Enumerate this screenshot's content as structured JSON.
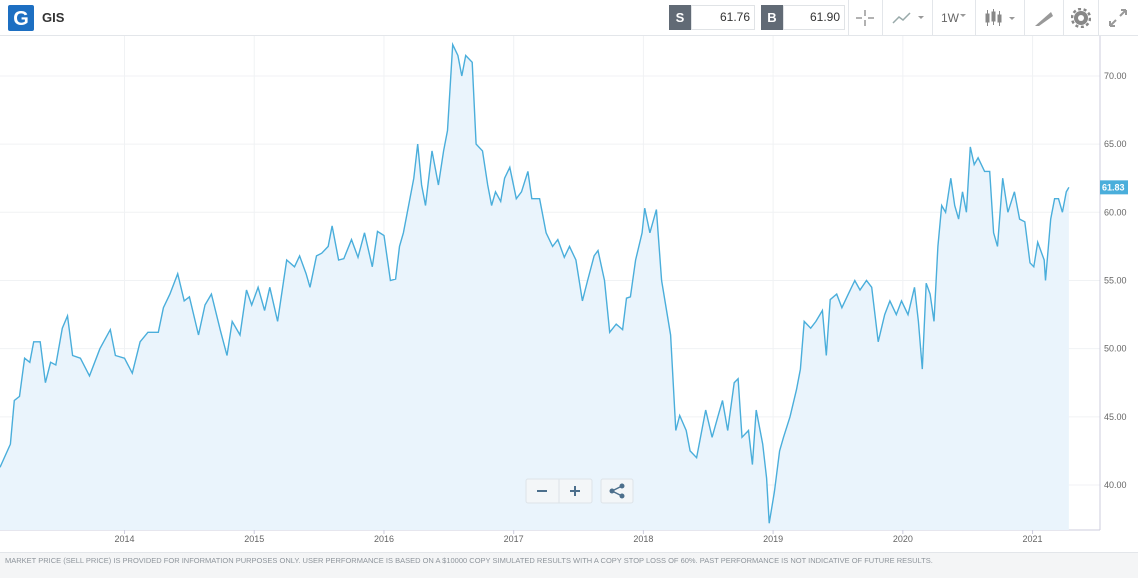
{
  "header": {
    "symbol": "GIS",
    "sell_label": "S",
    "sell_price": "61.76",
    "buy_label": "B",
    "buy_price": "61.90",
    "interval": "1W"
  },
  "chart_data": {
    "type": "line",
    "area": true,
    "area_color": "#eaf4fc",
    "grid": true,
    "axis_side": "right",
    "xlim": [
      2013.04,
      2021.52
    ],
    "xticks": [
      2014,
      2015,
      2016,
      2017,
      2018,
      2019,
      2020,
      2021
    ],
    "ylim": [
      36.7,
      72.93
    ],
    "yticks": [
      {
        "value": 40,
        "label": "40.00"
      },
      {
        "value": 45,
        "label": "45.00"
      },
      {
        "value": 50,
        "label": "50.00"
      },
      {
        "value": 55,
        "label": "55.00"
      },
      {
        "value": 60,
        "label": "60.00"
      },
      {
        "value": 65,
        "label": "65.00"
      },
      {
        "value": 70,
        "label": "70.00"
      }
    ],
    "series": [
      {
        "color": "#4aaedb",
        "x": [
          2013.04,
          2013.12,
          2013.15,
          2013.19,
          2013.23,
          2013.27,
          2013.3,
          2013.35,
          2013.39,
          2013.43,
          2013.47,
          2013.52,
          2013.56,
          2013.6,
          2013.66,
          2013.73,
          2013.81,
          2013.89,
          2013.93,
          2014.0,
          2014.06,
          2014.12,
          2014.18,
          2014.26,
          2014.3,
          2014.35,
          2014.41,
          2014.46,
          2014.5,
          2014.57,
          2014.62,
          2014.67,
          2014.74,
          2014.79,
          2014.83,
          2014.89,
          2014.94,
          2014.98,
          2015.03,
          2015.08,
          2015.12,
          2015.18,
          2015.25,
          2015.31,
          2015.35,
          2015.4,
          2015.43,
          2015.48,
          2015.52,
          2015.57,
          2015.6,
          2015.65,
          2015.69,
          2015.75,
          2015.8,
          2015.85,
          2015.91,
          2015.95,
          2016.0,
          2016.05,
          2016.09,
          2016.12,
          2016.15,
          2016.2,
          2016.23,
          2016.26,
          2016.29,
          2016.32,
          2016.37,
          2016.42,
          2016.46,
          2016.49,
          2016.53,
          2016.57,
          2016.6,
          2016.63,
          2016.68,
          2016.71,
          2016.76,
          2016.8,
          2016.83,
          2016.86,
          2016.9,
          2016.93,
          2016.97,
          2017.02,
          2017.06,
          2017.11,
          2017.14,
          2017.2,
          2017.25,
          2017.3,
          2017.34,
          2017.39,
          2017.43,
          2017.48,
          2017.53,
          2017.57,
          2017.62,
          2017.65,
          2017.7,
          2017.74,
          2017.79,
          2017.84,
          2017.87,
          2017.9,
          2017.94,
          2017.99,
          2018.01,
          2018.05,
          2018.1,
          2018.14,
          2018.21,
          2018.25,
          2018.28,
          2018.33,
          2018.36,
          2018.41,
          2018.44,
          2018.48,
          2018.53,
          2018.58,
          2018.61,
          2018.65,
          2018.7,
          2018.73,
          2018.76,
          2018.81,
          2018.84,
          2018.87,
          2018.92,
          2018.95,
          2018.97,
          2019.01,
          2019.05,
          2019.08,
          2019.13,
          2019.18,
          2019.21,
          2019.24,
          2019.29,
          2019.33,
          2019.38,
          2019.41,
          2019.44,
          2019.49,
          2019.53,
          2019.58,
          2019.63,
          2019.67,
          2019.72,
          2019.76,
          2019.81,
          2019.86,
          2019.9,
          2019.95,
          2019.99,
          2020.04,
          2020.09,
          2020.12,
          2020.15,
          2020.18,
          2020.21,
          2020.24,
          2020.27,
          2020.3,
          2020.33,
          2020.37,
          2020.4,
          2020.43,
          2020.46,
          2020.49,
          2020.52,
          2020.55,
          2020.58,
          2020.63,
          2020.67,
          2020.7,
          2020.73,
          2020.77,
          2020.81,
          2020.86,
          2020.9,
          2020.94,
          2020.98,
          2021.01,
          2021.04,
          2021.09,
          2021.1,
          2021.14,
          2021.17,
          2021.2,
          2021.23,
          2021.26,
          2021.28
        ],
        "values": [
          41.3,
          43,
          46.2,
          46.5,
          49.3,
          49,
          50.5,
          50.5,
          47.5,
          49,
          48.8,
          51.5,
          52.4,
          49.5,
          49.3,
          48,
          50,
          51.4,
          49.5,
          49.3,
          48.2,
          50.5,
          51.2,
          51.2,
          53,
          54,
          55.5,
          53.5,
          53.8,
          51,
          53.2,
          54,
          51.3,
          49.5,
          52,
          51,
          54.3,
          53.2,
          54.5,
          52.8,
          54.5,
          52,
          56.5,
          56,
          56.8,
          55.5,
          54.5,
          56.8,
          57,
          57.5,
          59,
          56.5,
          56.6,
          58,
          56.7,
          58.5,
          56,
          58.6,
          58.3,
          55,
          55.1,
          57.5,
          58.5,
          61,
          62.5,
          65,
          62,
          60.5,
          64.5,
          62,
          64.5,
          66,
          72.3,
          71.5,
          70,
          71.5,
          71,
          65,
          64.5,
          62,
          60.5,
          61.5,
          60.8,
          62.5,
          63.3,
          61,
          61.5,
          63,
          61,
          61,
          58.5,
          57.5,
          58,
          56.7,
          57.5,
          56.5,
          53.5,
          55,
          56.8,
          57.2,
          55,
          51.2,
          51.8,
          51.4,
          53.7,
          53.8,
          56.5,
          58.5,
          60.3,
          58.5,
          60.2,
          55,
          51,
          44,
          45.1,
          44,
          42.5,
          42,
          43.5,
          45.5,
          43.5,
          45.2,
          46.2,
          44,
          47.5,
          47.8,
          43.5,
          44,
          41.5,
          45.5,
          43,
          40.5,
          37.2,
          39.5,
          42.5,
          43.5,
          45,
          47,
          48.5,
          52,
          51.5,
          52,
          52.8,
          49.5,
          53.6,
          54,
          53,
          54,
          55,
          54.3,
          55,
          54.5,
          50.5,
          52.5,
          53.5,
          52.5,
          53.5,
          52.5,
          54.5,
          52,
          48.5,
          54.8,
          54,
          52,
          57.5,
          60.5,
          60,
          62.5,
          60.5,
          59.5,
          61.5,
          60,
          64.8,
          63.5,
          64,
          63,
          63,
          58.5,
          57.5,
          62.5,
          60,
          61.5,
          59.5,
          59.3,
          56.3,
          56,
          57.8,
          56.5,
          55,
          59.5,
          61,
          61,
          60,
          61.5,
          61.83
        ]
      }
    ]
  },
  "footer": {
    "disclaimer": "MARKET PRICE (SELL PRICE) IS PROVIDED FOR INFORMATION PURPOSES ONLY. USER PERFORMANCE IS BASED ON A $10000 COPY SIMULATED RESULTS WITH A COPY STOP LOSS OF 60%. PAST PERFORMANCE IS NOT INDICATIVE OF FUTURE RESULTS."
  }
}
